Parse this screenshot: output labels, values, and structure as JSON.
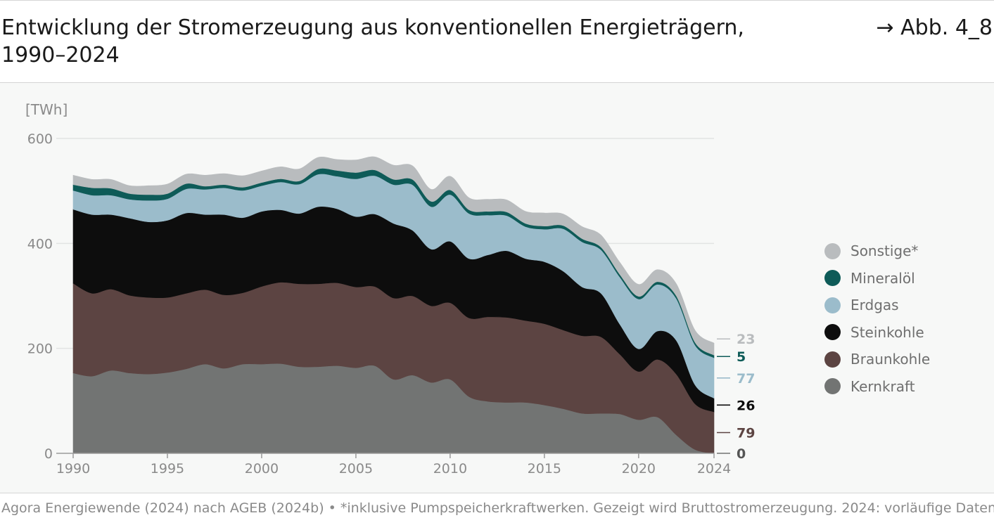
{
  "header": {
    "title_line1": "Entwicklung der Stromerzeugung aus konventionellen Energieträgern,",
    "title_line2": "1990–2024",
    "figure_ref": "→ Abb. 4_8"
  },
  "footer": {
    "source": "Agora Energiewende (2024) nach AGEB (2024b) • *inklusive Pumpspeicherkraftwerken. Gezeigt wird Bruttostromerzeugung. 2024: vorläufige Daten"
  },
  "chart_data": {
    "type": "area",
    "stacked": true,
    "title": "Entwicklung der Stromerzeugung aus konventionellen Energieträgern, 1990–2024",
    "ylabel": "[TWh]",
    "ylim": [
      0,
      600
    ],
    "yticks": [
      0,
      200,
      400,
      600
    ],
    "xticks": [
      1990,
      1995,
      2000,
      2005,
      2010,
      2015,
      2020,
      2024
    ],
    "grid": true,
    "legend_position": "right",
    "x": [
      1990,
      1991,
      1992,
      1993,
      1994,
      1995,
      1996,
      1997,
      1998,
      1999,
      2000,
      2001,
      2002,
      2003,
      2004,
      2005,
      2006,
      2007,
      2008,
      2009,
      2010,
      2011,
      2012,
      2013,
      2014,
      2015,
      2016,
      2017,
      2018,
      2019,
      2020,
      2021,
      2022,
      2023,
      2024
    ],
    "series": [
      {
        "name": "Kernkraft",
        "color": "#727473",
        "end_label": "0",
        "values": [
          153,
          147,
          158,
          153,
          151,
          154,
          161,
          170,
          162,
          170,
          170,
          171,
          165,
          165,
          167,
          163,
          167,
          141,
          149,
          135,
          141,
          108,
          99,
          97,
          97,
          92,
          85,
          76,
          76,
          75,
          64,
          69,
          35,
          7,
          0
        ]
      },
      {
        "name": "Braunkohle",
        "color": "#5c4442",
        "end_label": "79",
        "values": [
          171,
          158,
          155,
          148,
          146,
          143,
          144,
          142,
          140,
          136,
          148,
          155,
          158,
          158,
          158,
          154,
          151,
          155,
          151,
          146,
          146,
          150,
          161,
          162,
          156,
          155,
          150,
          148,
          146,
          114,
          92,
          110,
          116,
          87,
          79
        ]
      },
      {
        "name": "Steinkohle",
        "color": "#0d0d0d",
        "end_label": "26",
        "values": [
          141,
          150,
          142,
          147,
          144,
          147,
          153,
          143,
          153,
          143,
          143,
          138,
          134,
          147,
          141,
          134,
          138,
          142,
          125,
          108,
          117,
          113,
          118,
          127,
          118,
          118,
          112,
          93,
          83,
          57,
          43,
          54,
          64,
          36,
          26
        ]
      },
      {
        "name": "Erdgas",
        "color": "#9bbccb",
        "end_label": "77",
        "values": [
          36,
          37,
          37,
          36,
          41,
          41,
          46,
          48,
          51,
          52,
          49,
          53,
          56,
          62,
          62,
          72,
          73,
          74,
          87,
          81,
          89,
          86,
          76,
          67,
          61,
          62,
          81,
          86,
          83,
          90,
          95,
          89,
          80,
          76,
          77
        ]
      },
      {
        "name": "Mineralöl",
        "color": "#0e5b58",
        "end_label": "5",
        "values": [
          11,
          14,
          13,
          11,
          11,
          10,
          10,
          6,
          6,
          6,
          6,
          6,
          6,
          10,
          11,
          12,
          11,
          10,
          10,
          10,
          9,
          7,
          7,
          7,
          6,
          6,
          6,
          6,
          5,
          5,
          5,
          5,
          5,
          5,
          5
        ]
      },
      {
        "name": "Sonstige*",
        "color": "#b9bcbe",
        "end_label": "23",
        "values": [
          18,
          16,
          17,
          15,
          17,
          18,
          18,
          21,
          21,
          22,
          22,
          23,
          23,
          22,
          21,
          24,
          25,
          27,
          26,
          23,
          26,
          23,
          23,
          23,
          23,
          25,
          22,
          23,
          23,
          23,
          23,
          23,
          23,
          23,
          23
        ]
      }
    ]
  }
}
